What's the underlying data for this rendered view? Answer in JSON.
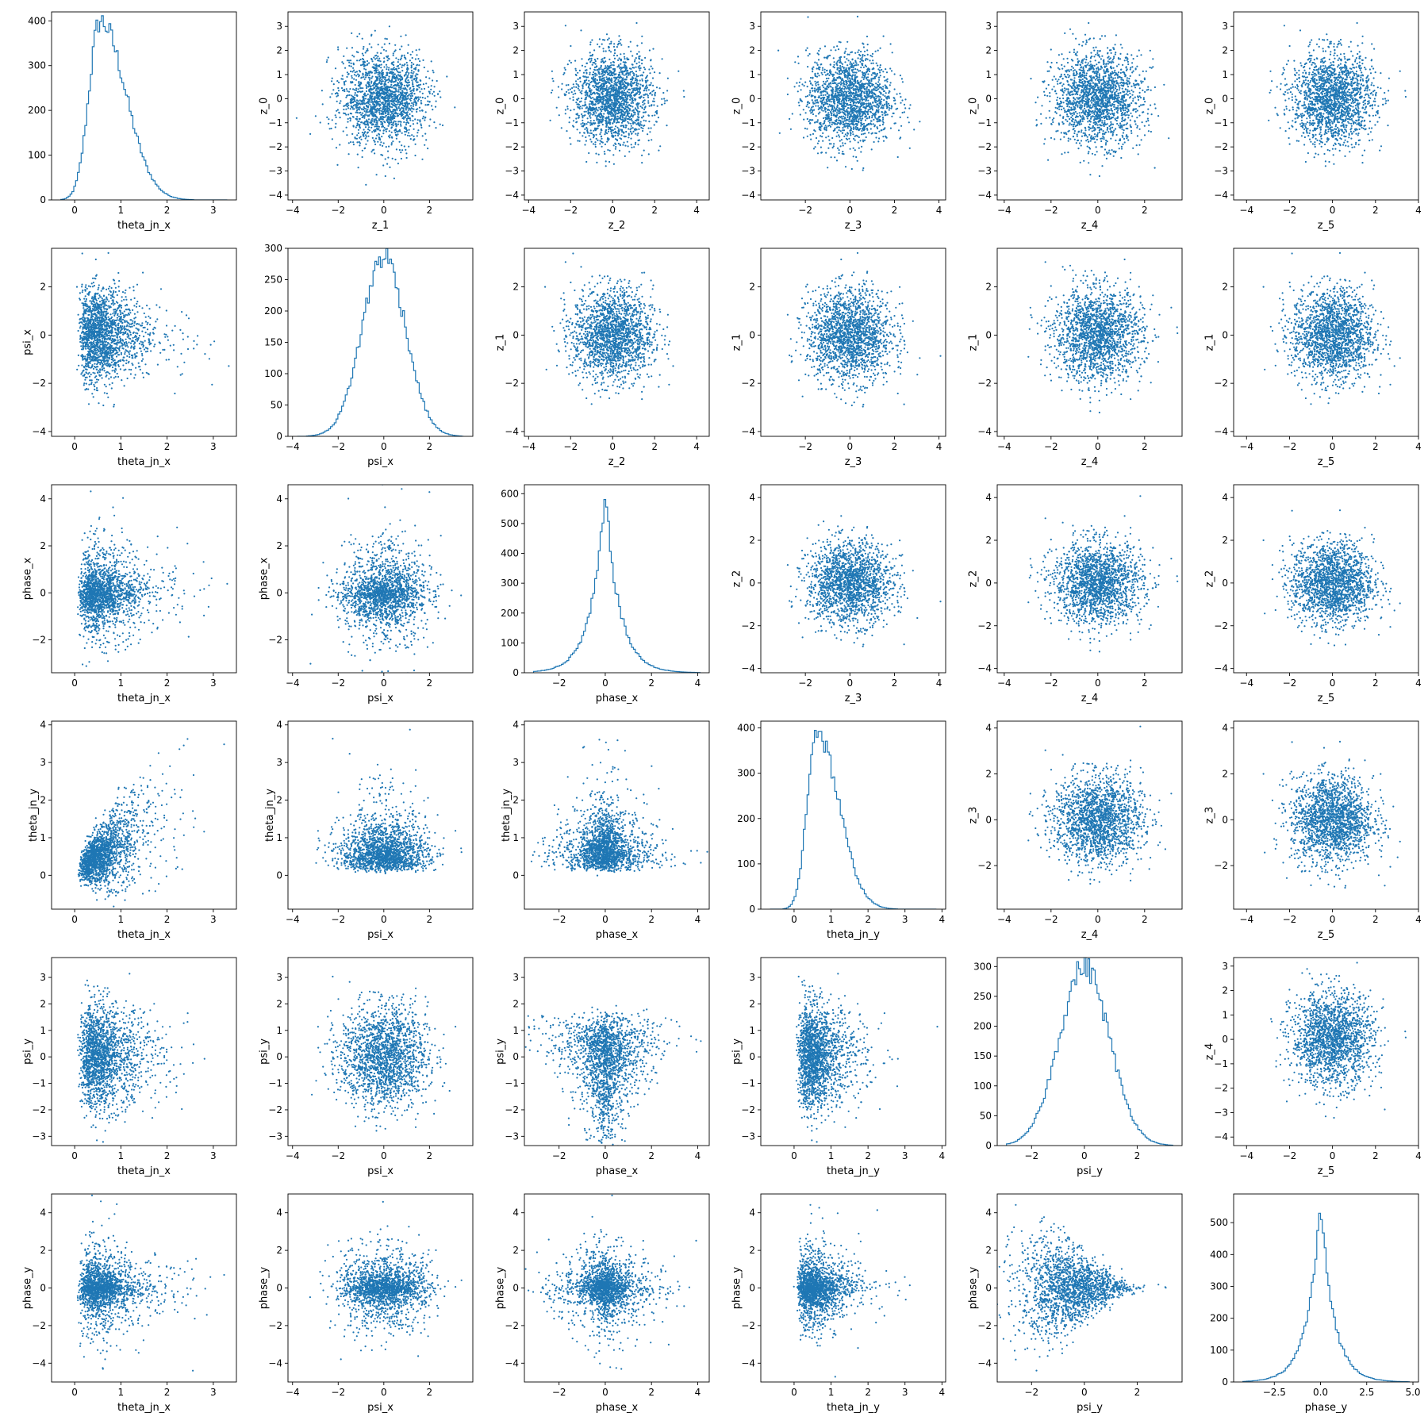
{
  "colors": {
    "series": "#1f77b4",
    "axis": "#000000",
    "background": "#ffffff"
  },
  "chart_data": [
    {
      "panel": "r0c0",
      "type": "histogram",
      "variable": "theta_jn_x",
      "xlabel": "theta_jn_x",
      "ylabel": "",
      "xlim": [
        -0.5,
        3.5
      ],
      "ylim": [
        0,
        420
      ],
      "xticks": [
        0,
        1,
        2,
        3
      ],
      "yticks": [
        0,
        100,
        200,
        300,
        400
      ],
      "dist": {
        "kind": "skew",
        "mode": 0.55,
        "sl": 0.24,
        "sr": 0.55
      },
      "peak": 400
    },
    {
      "panel": "r0c1",
      "type": "scatter",
      "x_variable": "z_1",
      "y_variable": "z_0",
      "xlabel": "z_1",
      "ylabel": "z_0",
      "xlim": [
        -4.2,
        3.9
      ],
      "ylim": [
        -4.2,
        3.6
      ],
      "xticks": [
        -4,
        -2,
        0,
        2
      ],
      "yticks": [
        -4,
        -3,
        -2,
        -1,
        0,
        1,
        2,
        3
      ]
    },
    {
      "panel": "r0c2",
      "type": "scatter",
      "x_variable": "z_2",
      "y_variable": "z_0",
      "xlabel": "z_2",
      "ylabel": "z_0",
      "xlim": [
        -4.2,
        4.6
      ],
      "ylim": [
        -4.2,
        3.6
      ],
      "xticks": [
        -4,
        -2,
        0,
        2,
        4
      ],
      "yticks": [
        -4,
        -3,
        -2,
        -1,
        0,
        1,
        2,
        3
      ]
    },
    {
      "panel": "r0c3",
      "type": "scatter",
      "x_variable": "z_3",
      "y_variable": "z_0",
      "xlabel": "z_3",
      "ylabel": "z_0",
      "xlim": [
        -4.0,
        4.3
      ],
      "ylim": [
        -4.2,
        3.6
      ],
      "xticks": [
        -2,
        0,
        2,
        4
      ],
      "yticks": [
        -4,
        -3,
        -2,
        -1,
        0,
        1,
        2,
        3
      ]
    },
    {
      "panel": "r0c4",
      "type": "scatter",
      "x_variable": "z_4",
      "y_variable": "z_0",
      "xlabel": "z_4",
      "ylabel": "z_0",
      "xlim": [
        -4.3,
        3.6
      ],
      "ylim": [
        -4.2,
        3.6
      ],
      "xticks": [
        -4,
        -2,
        0,
        2
      ],
      "yticks": [
        -4,
        -3,
        -2,
        -1,
        0,
        1,
        2,
        3
      ]
    },
    {
      "panel": "r0c5",
      "type": "scatter",
      "x_variable": "z_5",
      "y_variable": "z_0",
      "xlabel": "z_5",
      "ylabel": "z_0",
      "xlim": [
        -4.6,
        4.0
      ],
      "ylim": [
        -4.2,
        3.6
      ],
      "xticks": [
        -4,
        -2,
        0,
        2,
        4
      ],
      "yticks": [
        -4,
        -3,
        -2,
        -1,
        0,
        1,
        2,
        3
      ]
    },
    {
      "panel": "r1c0",
      "type": "scatter",
      "x_variable": "theta_jn_x",
      "y_variable": "psi_x",
      "xlabel": "theta_jn_x",
      "ylabel": "psi_x",
      "xlim": [
        -0.5,
        3.5
      ],
      "ylim": [
        -4.2,
        3.6
      ],
      "xticks": [
        0,
        1,
        2,
        3
      ],
      "yticks": [
        -4,
        -2,
        0,
        2
      ]
    },
    {
      "panel": "r1c1",
      "type": "histogram",
      "variable": "psi_x",
      "xlabel": "psi_x",
      "ylabel": "",
      "xlim": [
        -4.2,
        3.9
      ],
      "ylim": [
        0,
        300
      ],
      "xticks": [
        -4,
        -2,
        0,
        2
      ],
      "yticks": [
        0,
        50,
        100,
        150,
        200,
        250,
        300
      ],
      "dist": {
        "kind": "normal",
        "mean": 0.0,
        "sd": 0.95
      },
      "peak": 288
    },
    {
      "panel": "r1c2",
      "type": "scatter",
      "x_variable": "z_2",
      "y_variable": "z_1",
      "xlabel": "z_2",
      "ylabel": "z_1",
      "xlim": [
        -4.2,
        4.6
      ],
      "ylim": [
        -4.2,
        3.6
      ],
      "xticks": [
        -4,
        -2,
        0,
        2,
        4
      ],
      "yticks": [
        -4,
        -2,
        0,
        2
      ]
    },
    {
      "panel": "r1c3",
      "type": "scatter",
      "x_variable": "z_3",
      "y_variable": "z_1",
      "xlabel": "z_3",
      "ylabel": "z_1",
      "xlim": [
        -4.0,
        4.3
      ],
      "ylim": [
        -4.2,
        3.6
      ],
      "xticks": [
        -2,
        0,
        2,
        4
      ],
      "yticks": [
        -4,
        -2,
        0,
        2
      ]
    },
    {
      "panel": "r1c4",
      "type": "scatter",
      "x_variable": "z_4",
      "y_variable": "z_1",
      "xlabel": "z_4",
      "ylabel": "z_1",
      "xlim": [
        -4.3,
        3.6
      ],
      "ylim": [
        -4.2,
        3.6
      ],
      "xticks": [
        -4,
        -2,
        0,
        2
      ],
      "yticks": [
        -4,
        -2,
        0,
        2
      ]
    },
    {
      "panel": "r1c5",
      "type": "scatter",
      "x_variable": "z_5",
      "y_variable": "z_1",
      "xlabel": "z_5",
      "ylabel": "z_1",
      "xlim": [
        -4.6,
        4.0
      ],
      "ylim": [
        -4.2,
        3.6
      ],
      "xticks": [
        -4,
        -2,
        0,
        2,
        4
      ],
      "yticks": [
        -4,
        -2,
        0,
        2
      ]
    },
    {
      "panel": "r2c0",
      "type": "scatter",
      "x_variable": "theta_jn_x",
      "y_variable": "phase_x",
      "xlabel": "theta_jn_x",
      "ylabel": "phase_x",
      "xlim": [
        -0.5,
        3.5
      ],
      "ylim": [
        -3.4,
        4.6
      ],
      "xticks": [
        0,
        1,
        2,
        3
      ],
      "yticks": [
        -2,
        0,
        2,
        4
      ]
    },
    {
      "panel": "r2c1",
      "type": "scatter",
      "x_variable": "psi_x",
      "y_variable": "phase_x",
      "xlabel": "psi_x",
      "ylabel": "phase_x",
      "xlim": [
        -4.2,
        3.9
      ],
      "ylim": [
        -3.4,
        4.6
      ],
      "xticks": [
        -4,
        -2,
        0,
        2
      ],
      "yticks": [
        -2,
        0,
        2,
        4
      ]
    },
    {
      "panel": "r2c2",
      "type": "histogram",
      "variable": "phase_x",
      "xlabel": "phase_x",
      "ylabel": "",
      "xlim": [
        -3.5,
        4.5
      ],
      "ylim": [
        0,
        630
      ],
      "xticks": [
        -2,
        0,
        2,
        4
      ],
      "yticks": [
        0,
        100,
        200,
        300,
        400,
        500,
        600
      ],
      "dist": {
        "kind": "laplace",
        "mean": 0.0,
        "b": 0.62
      },
      "peak": 595
    },
    {
      "panel": "r2c3",
      "type": "scatter",
      "x_variable": "z_3",
      "y_variable": "z_2",
      "xlabel": "z_3",
      "ylabel": "z_2",
      "xlim": [
        -4.0,
        4.3
      ],
      "ylim": [
        -4.2,
        4.6
      ],
      "xticks": [
        -2,
        0,
        2,
        4
      ],
      "yticks": [
        -4,
        -2,
        0,
        2,
        4
      ]
    },
    {
      "panel": "r2c4",
      "type": "scatter",
      "x_variable": "z_4",
      "y_variable": "z_2",
      "xlabel": "z_4",
      "ylabel": "z_2",
      "xlim": [
        -4.3,
        3.6
      ],
      "ylim": [
        -4.2,
        4.6
      ],
      "xticks": [
        -4,
        -2,
        0,
        2
      ],
      "yticks": [
        -4,
        -2,
        0,
        2,
        4
      ]
    },
    {
      "panel": "r2c5",
      "type": "scatter",
      "x_variable": "z_5",
      "y_variable": "z_2",
      "xlabel": "z_5",
      "ylabel": "z_2",
      "xlim": [
        -4.6,
        4.0
      ],
      "ylim": [
        -4.2,
        4.6
      ],
      "xticks": [
        -4,
        -2,
        0,
        2,
        4
      ],
      "yticks": [
        -4,
        -2,
        0,
        2,
        4
      ]
    },
    {
      "panel": "r3c0",
      "type": "scatter",
      "x_variable": "theta_jn_x",
      "y_variable": "theta_jn_y",
      "xlabel": "theta_jn_x",
      "ylabel": "theta_jn_y",
      "xlim": [
        -0.5,
        3.5
      ],
      "ylim": [
        -0.9,
        4.1
      ],
      "xticks": [
        0,
        1,
        2,
        3
      ],
      "yticks": [
        0,
        1,
        2,
        3,
        4
      ]
    },
    {
      "panel": "r3c1",
      "type": "scatter",
      "x_variable": "psi_x",
      "y_variable": "theta_jn_y",
      "xlabel": "psi_x",
      "ylabel": "theta_jn_y",
      "xlim": [
        -4.2,
        3.9
      ],
      "ylim": [
        -0.9,
        4.1
      ],
      "xticks": [
        -4,
        -2,
        0,
        2
      ],
      "yticks": [
        0,
        1,
        2,
        3,
        4
      ]
    },
    {
      "panel": "r3c2",
      "type": "scatter",
      "x_variable": "phase_x",
      "y_variable": "theta_jn_y",
      "xlabel": "phase_x",
      "ylabel": "theta_jn_y",
      "xlim": [
        -3.5,
        4.5
      ],
      "ylim": [
        -0.9,
        4.1
      ],
      "xticks": [
        -2,
        0,
        2,
        4
      ],
      "yticks": [
        0,
        1,
        2,
        3,
        4
      ]
    },
    {
      "panel": "r3c3",
      "type": "histogram",
      "variable": "theta_jn_y",
      "xlabel": "theta_jn_y",
      "ylabel": "",
      "xlim": [
        -0.9,
        4.1
      ],
      "ylim": [
        0,
        415
      ],
      "xticks": [
        0,
        1,
        2,
        3,
        4
      ],
      "yticks": [
        0,
        100,
        200,
        300,
        400
      ],
      "dist": {
        "kind": "skew",
        "mode": 0.6,
        "sl": 0.25,
        "sr": 0.6
      },
      "peak": 395
    },
    {
      "panel": "r3c4",
      "type": "scatter",
      "x_variable": "z_4",
      "y_variable": "z_3",
      "xlabel": "z_4",
      "ylabel": "z_3",
      "xlim": [
        -4.3,
        3.6
      ],
      "ylim": [
        -3.9,
        4.3
      ],
      "xticks": [
        -4,
        -2,
        0,
        2
      ],
      "yticks": [
        -2,
        0,
        2,
        4
      ]
    },
    {
      "panel": "r3c5",
      "type": "scatter",
      "x_variable": "z_5",
      "y_variable": "z_3",
      "xlabel": "z_5",
      "ylabel": "z_3",
      "xlim": [
        -4.6,
        4.0
      ],
      "ylim": [
        -3.9,
        4.3
      ],
      "xticks": [
        -4,
        -2,
        0,
        2,
        4
      ],
      "yticks": [
        -2,
        0,
        2,
        4
      ]
    },
    {
      "panel": "r4c0",
      "type": "scatter",
      "x_variable": "theta_jn_x",
      "y_variable": "psi_y",
      "xlabel": "theta_jn_x",
      "ylabel": "psi_y",
      "xlim": [
        -0.5,
        3.5
      ],
      "ylim": [
        -3.35,
        3.75
      ],
      "xticks": [
        0,
        1,
        2,
        3
      ],
      "yticks": [
        -3,
        -2,
        -1,
        0,
        1,
        2,
        3
      ]
    },
    {
      "panel": "r4c1",
      "type": "scatter",
      "x_variable": "psi_x",
      "y_variable": "psi_y",
      "xlabel": "psi_x",
      "ylabel": "psi_y",
      "xlim": [
        -4.2,
        3.9
      ],
      "ylim": [
        -3.35,
        3.75
      ],
      "xticks": [
        -4,
        -2,
        0,
        2
      ],
      "yticks": [
        -3,
        -2,
        -1,
        0,
        1,
        2,
        3
      ]
    },
    {
      "panel": "r4c2",
      "type": "scatter",
      "x_variable": "phase_x",
      "y_variable": "psi_y",
      "xlabel": "phase_x",
      "ylabel": "psi_y",
      "xlim": [
        -3.5,
        4.5
      ],
      "ylim": [
        -3.35,
        3.75
      ],
      "xticks": [
        -2,
        0,
        2,
        4
      ],
      "yticks": [
        -3,
        -2,
        -1,
        0,
        1,
        2,
        3
      ]
    },
    {
      "panel": "r4c3",
      "type": "scatter",
      "x_variable": "theta_jn_y",
      "y_variable": "psi_y",
      "xlabel": "theta_jn_y",
      "ylabel": "psi_y",
      "xlim": [
        -0.9,
        4.1
      ],
      "ylim": [
        -3.35,
        3.75
      ],
      "xticks": [
        0,
        1,
        2,
        3,
        4
      ],
      "yticks": [
        -3,
        -2,
        -1,
        0,
        1,
        2,
        3
      ]
    },
    {
      "panel": "r4c4",
      "type": "histogram",
      "variable": "psi_y",
      "xlabel": "psi_y",
      "ylabel": "",
      "xlim": [
        -3.3,
        3.7
      ],
      "ylim": [
        0,
        315
      ],
      "xticks": [
        -2,
        0,
        2
      ],
      "yticks": [
        0,
        50,
        100,
        150,
        200,
        250,
        300
      ],
      "dist": {
        "kind": "normal",
        "mean": 0.0,
        "sd": 0.95
      },
      "peak": 300
    },
    {
      "panel": "r4c5",
      "type": "scatter",
      "x_variable": "z_5",
      "y_variable": "z_4",
      "xlabel": "z_5",
      "ylabel": "z_4",
      "xlim": [
        -4.6,
        4.0
      ],
      "ylim": [
        -4.35,
        3.35
      ],
      "xticks": [
        -4,
        -2,
        0,
        2,
        4
      ],
      "yticks": [
        -4,
        -3,
        -2,
        -1,
        0,
        1,
        2,
        3
      ]
    },
    {
      "panel": "r5c0",
      "type": "scatter",
      "x_variable": "theta_jn_x",
      "y_variable": "phase_y",
      "xlabel": "theta_jn_x",
      "ylabel": "phase_y",
      "xlim": [
        -0.5,
        3.5
      ],
      "ylim": [
        -5.0,
        5.0
      ],
      "xticks": [
        0,
        1,
        2,
        3
      ],
      "yticks": [
        -4,
        -2,
        0,
        2,
        4
      ]
    },
    {
      "panel": "r5c1",
      "type": "scatter",
      "x_variable": "psi_x",
      "y_variable": "phase_y",
      "xlabel": "psi_x",
      "ylabel": "phase_y",
      "xlim": [
        -4.2,
        3.9
      ],
      "ylim": [
        -5.0,
        5.0
      ],
      "xticks": [
        -4,
        -2,
        0,
        2
      ],
      "yticks": [
        -4,
        -2,
        0,
        2,
        4
      ]
    },
    {
      "panel": "r5c2",
      "type": "scatter",
      "x_variable": "phase_x",
      "y_variable": "phase_y",
      "xlabel": "phase_x",
      "ylabel": "phase_y",
      "xlim": [
        -3.5,
        4.5
      ],
      "ylim": [
        -5.0,
        5.0
      ],
      "xticks": [
        -2,
        0,
        2,
        4
      ],
      "yticks": [
        -4,
        -2,
        0,
        2,
        4
      ]
    },
    {
      "panel": "r5c3",
      "type": "scatter",
      "x_variable": "theta_jn_y",
      "y_variable": "phase_y",
      "xlabel": "theta_jn_y",
      "ylabel": "phase_y",
      "xlim": [
        -0.9,
        4.1
      ],
      "ylim": [
        -5.0,
        5.0
      ],
      "xticks": [
        0,
        1,
        2,
        3,
        4
      ],
      "yticks": [
        -4,
        -2,
        0,
        2,
        4
      ]
    },
    {
      "panel": "r5c4",
      "type": "scatter",
      "x_variable": "psi_y",
      "y_variable": "phase_y",
      "xlabel": "psi_y",
      "ylabel": "phase_y",
      "xlim": [
        -3.3,
        3.7
      ],
      "ylim": [
        -5.0,
        5.0
      ],
      "xticks": [
        -2,
        0,
        2
      ],
      "yticks": [
        -4,
        -2,
        0,
        2,
        4
      ]
    },
    {
      "panel": "r5c5",
      "type": "histogram",
      "variable": "phase_y",
      "xlabel": "phase_y",
      "ylabel": "",
      "xlim": [
        -4.7,
        5.3
      ],
      "ylim": [
        0,
        590
      ],
      "xticks": [
        -2.5,
        0.0,
        2.5,
        5.0
      ],
      "xtick_labels": [
        "−2.5",
        "0.0",
        "2.5",
        "5.0"
      ],
      "yticks": [
        0,
        100,
        200,
        300,
        400,
        500
      ],
      "dist": {
        "kind": "laplace",
        "mean": 0.0,
        "b": 0.72
      },
      "peak": 560
    }
  ]
}
